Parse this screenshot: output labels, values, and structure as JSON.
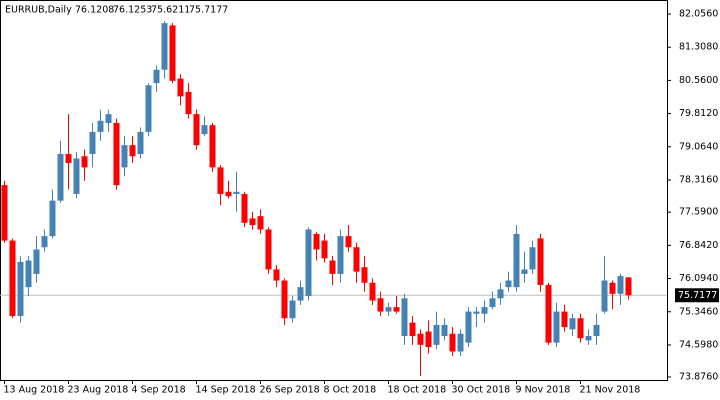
{
  "chart_data": {
    "type": "candlestick",
    "symbol": "EURRUB,Daily",
    "categories": [
      "13 Aug 2018",
      null,
      null,
      null,
      null,
      null,
      null,
      null,
      "23 Aug 2018",
      null,
      null,
      null,
      null,
      null,
      null,
      null,
      "4 Sep 2018",
      null,
      null,
      null,
      null,
      null,
      null,
      null,
      "14 Sep 2018",
      null,
      null,
      null,
      null,
      null,
      null,
      null,
      "26 Sep 2018",
      null,
      null,
      null,
      null,
      null,
      null,
      null,
      "8 Oct 2018",
      null,
      null,
      null,
      null,
      null,
      null,
      null,
      "18 Oct 2018",
      null,
      null,
      null,
      null,
      null,
      null,
      null,
      "30 Oct 2018",
      null,
      null,
      null,
      null,
      null,
      null,
      null,
      "9 Nov 2018",
      null,
      null,
      null,
      null,
      null,
      null,
      null,
      "21 Nov 2018",
      null,
      null,
      null,
      null,
      null,
      null
    ],
    "open": [
      78.2,
      76.95,
      75.25,
      75.9,
      76.2,
      76.8,
      77.05,
      77.85,
      78.9,
      78.0,
      78.85,
      78.9,
      79.4,
      79.6,
      79.6,
      78.6,
      79.1,
      78.9,
      79.4,
      80.5,
      80.8,
      81.8,
      80.6,
      80.3,
      79.8,
      79.35,
      79.55,
      78.6,
      78.05,
      78.0,
      78.0,
      77.45,
      77.5,
      77.2,
      76.3,
      76.05,
      75.2,
      75.6,
      75.7,
      77.1,
      76.95,
      76.5,
      76.2,
      77.05,
      76.8,
      76.35,
      76.0,
      75.65,
      75.35,
      75.45,
      74.8,
      75.1,
      74.85,
      74.9,
      74.6,
      74.8,
      74.85,
      74.45,
      74.65,
      75.3,
      75.3,
      75.45,
      75.65,
      75.9,
      75.9,
      76.2,
      76.3,
      77.0,
      75.95,
      74.65,
      75.35,
      74.95,
      75.2,
      74.7,
      74.8,
      75.35,
      76.0,
      75.75,
      76.1208
    ],
    "high": [
      78.3,
      77.0,
      76.6,
      76.6,
      77.05,
      77.2,
      78.1,
      79.2,
      79.8,
      78.95,
      79.0,
      79.6,
      79.9,
      79.9,
      79.7,
      79.3,
      79.3,
      79.5,
      80.5,
      80.9,
      81.9,
      81.85,
      80.7,
      80.5,
      79.9,
      79.75,
      79.6,
      78.65,
      78.3,
      78.5,
      78.05,
      77.6,
      77.65,
      77.25,
      76.4,
      76.1,
      75.7,
      76.05,
      77.25,
      77.15,
      77.1,
      76.6,
      77.2,
      77.3,
      76.9,
      76.6,
      76.1,
      75.8,
      75.55,
      75.7,
      75.75,
      75.25,
      74.95,
      75.15,
      75.35,
      75.2,
      75.0,
      74.95,
      75.45,
      75.45,
      75.6,
      75.8,
      76.0,
      76.25,
      77.3,
      76.7,
      76.95,
      77.1,
      76.0,
      75.55,
      75.5,
      75.3,
      75.3,
      74.95,
      75.3,
      76.6,
      76.05,
      76.2,
      76.1253
    ],
    "low": [
      76.9,
      75.2,
      75.1,
      75.7,
      76.0,
      76.7,
      77.0,
      77.8,
      78.1,
      77.9,
      78.3,
      78.6,
      79.2,
      79.4,
      78.1,
      78.4,
      78.7,
      78.8,
      79.3,
      80.3,
      80.6,
      80.5,
      80.0,
      79.7,
      79.0,
      79.3,
      78.5,
      77.75,
      77.9,
      77.6,
      77.25,
      77.2,
      77.1,
      76.2,
      75.9,
      75.05,
      75.1,
      75.5,
      75.6,
      76.5,
      76.45,
      75.95,
      76.0,
      76.7,
      76.0,
      75.8,
      75.5,
      75.25,
      75.25,
      75.3,
      74.6,
      74.6,
      73.9,
      74.4,
      74.5,
      74.7,
      74.35,
      74.35,
      74.55,
      75.0,
      75.1,
      75.4,
      75.5,
      75.8,
      75.8,
      76.0,
      76.2,
      75.8,
      74.6,
      74.55,
      74.9,
      74.8,
      74.65,
      74.6,
      74.6,
      75.3,
      75.4,
      75.5,
      75.6211
    ],
    "close": [
      76.95,
      75.25,
      76.47,
      76.5,
      76.75,
      77.05,
      77.85,
      78.9,
      78.7,
      78.8,
      78.6,
      79.4,
      79.65,
      79.8,
      78.2,
      79.1,
      78.85,
      79.4,
      80.45,
      80.8,
      81.85,
      80.55,
      80.2,
      79.8,
      79.1,
      79.55,
      78.6,
      78.0,
      77.95,
      78.05,
      77.35,
      77.3,
      77.2,
      76.3,
      76.05,
      75.2,
      75.6,
      75.9,
      77.2,
      76.75,
      76.55,
      76.2,
      77.05,
      76.8,
      76.25,
      76.0,
      75.6,
      75.35,
      75.45,
      75.35,
      75.65,
      74.8,
      74.6,
      74.55,
      75.05,
      75.05,
      74.45,
      74.85,
      75.35,
      75.35,
      75.45,
      75.65,
      75.85,
      76.05,
      77.1,
      76.3,
      76.8,
      75.95,
      74.65,
      75.35,
      75.0,
      75.2,
      74.75,
      74.8,
      75.05,
      76.05,
      75.75,
      76.15,
      75.7177
    ],
    "up_color": "#4682b4",
    "down_color": "#ff0000",
    "ylim": [
      73.808,
      82.372
    ],
    "yticks": [
      {
        "value": 82.056,
        "label": "82.0560"
      },
      {
        "value": 81.308,
        "label": "81.3080"
      },
      {
        "value": 80.56,
        "label": "80.5600"
      },
      {
        "value": 79.812,
        "label": "79.8120"
      },
      {
        "value": 79.064,
        "label": "79.0640"
      },
      {
        "value": 78.316,
        "label": "78.3160"
      },
      {
        "value": 77.59,
        "label": "77.5900"
      },
      {
        "value": 76.842,
        "label": "76.8420"
      },
      {
        "value": 76.094,
        "label": "76.0940"
      },
      {
        "value": 75.346,
        "label": "75.3460"
      },
      {
        "value": 74.598,
        "label": "74.5980"
      },
      {
        "value": 73.876,
        "label": "73.8760"
      }
    ]
  }
}
